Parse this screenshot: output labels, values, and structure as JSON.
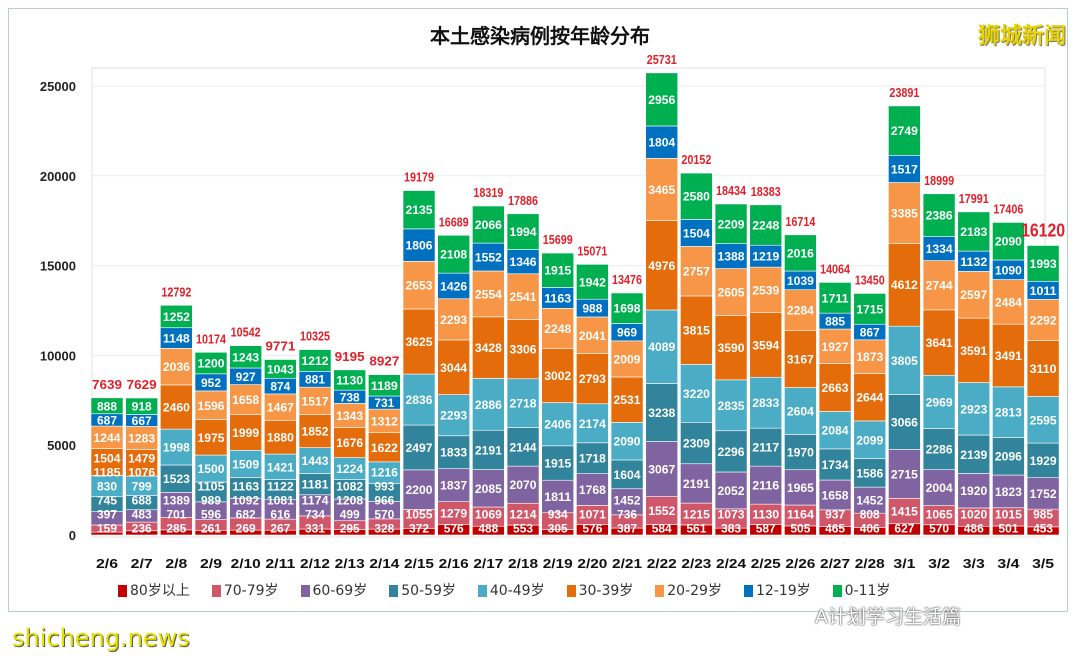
{
  "chart_data": {
    "type": "bar",
    "stacked": true,
    "title": "本土感染病例按年龄分布",
    "categories": [
      "2/6",
      "2/7",
      "2/8",
      "2/9",
      "2/10",
      "2/11",
      "2/12",
      "2/13",
      "2/14",
      "2/15",
      "2/16",
      "2/17",
      "2/18",
      "2/19",
      "2/20",
      "2/21",
      "2/22",
      "2/23",
      "2/24",
      "2/25",
      "2/26",
      "2/27",
      "2/28",
      "3/1",
      "3/2",
      "3/3",
      "3/4",
      "3/5"
    ],
    "ylim": [
      0,
      25000
    ],
    "yticks": [
      "0",
      "5000",
      "10000",
      "15000",
      "20000",
      "25000"
    ],
    "grid": true,
    "legend": "bottom",
    "totals": [
      7639,
      7629,
      12792,
      10174,
      10542,
      9771,
      10325,
      9195,
      8927,
      19179,
      16689,
      18319,
      17886,
      15699,
      15071,
      13476,
      25731,
      20152,
      18434,
      18383,
      16714,
      14064,
      13450,
      23891,
      18999,
      17991,
      17406,
      16120
    ],
    "series": [
      {
        "name": "80岁以上",
        "color": "#c00000",
        "values": [
          159,
          236,
          285,
          261,
          269,
          267,
          331,
          295,
          328,
          372,
          576,
          488,
          553,
          305,
          576,
          387,
          584,
          561,
          383,
          587,
          505,
          465,
          406,
          627,
          570,
          486,
          501,
          453
        ]
      },
      {
        "name": "70-79岁",
        "color": "#d0566a",
        "values": [
          397,
          483,
          701,
          596,
          682,
          616,
          734,
          499,
          570,
          1055,
          1279,
          1069,
          1214,
          934,
          1071,
          736,
          1552,
          1215,
          1073,
          1130,
          1164,
          937,
          808,
          1415,
          1065,
          1020,
          1015,
          985
        ]
      },
      {
        "name": "60-69岁",
        "color": "#8064a2",
        "values": [
          745,
          688,
          1389,
          989,
          1092,
          1081,
          1174,
          1208,
          966,
          2200,
          1837,
          2085,
          2070,
          1811,
          1768,
          1452,
          3067,
          2191,
          2052,
          2116,
          1965,
          1658,
          1452,
          2715,
          2004,
          1920,
          1823,
          1752
        ]
      },
      {
        "name": "50-59岁",
        "color": "#31849b",
        "values": [
          830,
          799,
          1523,
          1105,
          1163,
          1122,
          1181,
          1082,
          993,
          2497,
          1833,
          2191,
          2144,
          1915,
          1718,
          1604,
          3238,
          2309,
          2296,
          2117,
          1970,
          1734,
          1586,
          3066,
          2286,
          2139,
          2096,
          1929
        ]
      },
      {
        "name": "40-49岁",
        "color": "#4bacc6",
        "values": [
          1185,
          1076,
          1998,
          1500,
          1509,
          1421,
          1443,
          1224,
          1216,
          2836,
          2293,
          2886,
          2718,
          2406,
          2174,
          2090,
          4089,
          3220,
          2835,
          2833,
          2604,
          2084,
          2099,
          3805,
          2969,
          2923,
          2813,
          2595
        ]
      },
      {
        "name": "30-39岁",
        "color": "#e46c0a",
        "values": [
          1504,
          1479,
          2460,
          1975,
          1999,
          1880,
          1852,
          1676,
          1622,
          3625,
          3044,
          3428,
          3306,
          3002,
          2793,
          2531,
          4976,
          3815,
          3590,
          3594,
          3167,
          2663,
          2644,
          4612,
          3641,
          3591,
          3491,
          3110
        ]
      },
      {
        "name": "20-29岁",
        "color": "#f79646",
        "values": [
          1244,
          1283,
          2036,
          1596,
          1658,
          1467,
          1517,
          1343,
          1312,
          2653,
          2293,
          2554,
          2541,
          2248,
          2041,
          2009,
          3465,
          2757,
          2605,
          2539,
          2284,
          1927,
          1873,
          3385,
          2744,
          2597,
          2484,
          2292
        ]
      },
      {
        "name": "12-19岁",
        "color": "#0070c0",
        "values": [
          687,
          667,
          1148,
          952,
          927,
          874,
          881,
          738,
          731,
          1806,
          1426,
          1552,
          1346,
          1163,
          988,
          969,
          1804,
          1504,
          1388,
          1219,
          1039,
          885,
          867,
          1517,
          1334,
          1132,
          1090,
          1011
        ]
      },
      {
        "name": "0-11岁",
        "color": "#00b050",
        "values": [
          888,
          918,
          1252,
          1200,
          1243,
          1043,
          1212,
          1130,
          1189,
          2135,
          2108,
          2066,
          1994,
          1915,
          1942,
          1698,
          2956,
          2580,
          2209,
          2248,
          2016,
          1711,
          1715,
          2749,
          2386,
          2183,
          2090,
          1993
        ]
      }
    ],
    "total_color": "#e0202a"
  },
  "watermarks": {
    "top_right": "狮城新闻",
    "bottom_left": "shicheng.news",
    "wechat": "A计划学习生活篇"
  }
}
